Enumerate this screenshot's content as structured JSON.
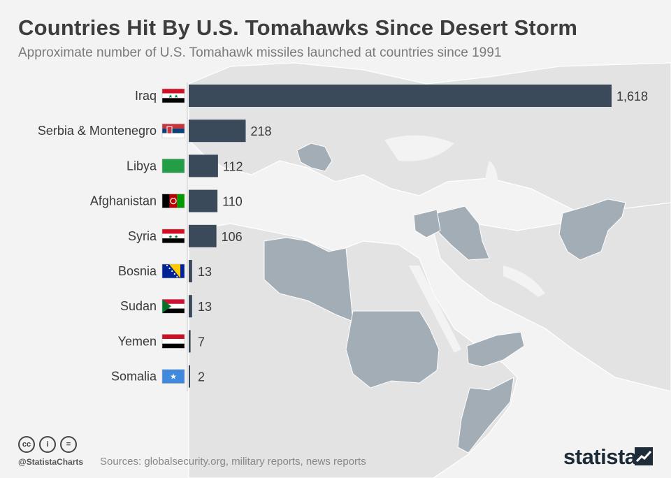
{
  "header": {
    "title": "Countries Hit By U.S. Tomahawks Since Desert Storm",
    "subtitle": "Approximate number of U.S. Tomahawk missiles launched at countries since 1991"
  },
  "chart_data": {
    "type": "bar",
    "orientation": "horizontal",
    "categories": [
      "Iraq",
      "Serbia & Montenegro",
      "Libya",
      "Afghanistan",
      "Syria",
      "Bosnia",
      "Sudan",
      "Yemen",
      "Somalia"
    ],
    "values": [
      1618,
      218,
      112,
      110,
      106,
      13,
      13,
      7,
      2
    ],
    "value_labels": [
      "1,618",
      "218",
      "112",
      "110",
      "106",
      "13",
      "13",
      "7",
      "2"
    ],
    "flags": [
      "iraq-flag-icon",
      "serbia-flag-icon",
      "libya-flag-icon",
      "afghanistan-flag-icon",
      "syria-flag-icon",
      "bosnia-flag-icon",
      "sudan-flag-icon",
      "yemen-flag-icon",
      "somalia-flag-icon"
    ],
    "bar_color": "#3b4a5a",
    "grid": false,
    "legend": "none"
  },
  "footer": {
    "handle": "@StatistaCharts",
    "sources": "Sources: globalsecurity.org, military reports, news reports",
    "brand": "statista",
    "license_icons": [
      "cc-icon",
      "by-icon",
      "nd-icon"
    ],
    "license_glyphs": [
      "cc",
      "i",
      "="
    ]
  },
  "colors": {
    "background": "#f3f3f3",
    "land": "#e2e2e2",
    "highlight_country": "#a3adb6",
    "bar": "#3b4a5a"
  }
}
